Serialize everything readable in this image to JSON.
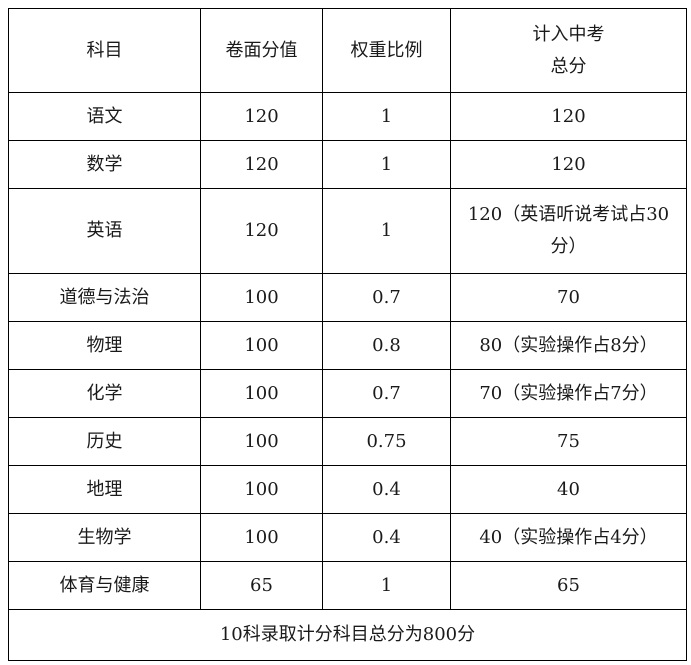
{
  "header": [
    "科目",
    "卷面分值",
    "权重比例",
    "计入中考\n总分"
  ],
  "header_line1": "计入中考",
  "header_line2": "总分",
  "rows": [
    [
      "语文",
      "120",
      "1",
      "120"
    ],
    [
      "数学",
      "120",
      "1",
      "120"
    ],
    [
      "英语",
      "120",
      "1",
      "120（英语听说考试占30分）"
    ],
    [
      "道德与法治",
      "100",
      "0.7",
      "70"
    ],
    [
      "物理",
      "100",
      "0.8",
      "80（实验操作占8分）"
    ],
    [
      "化学",
      "100",
      "0.7",
      "70（实验操作占7分）"
    ],
    [
      "历史",
      "100",
      "0.75",
      "75"
    ],
    [
      "地理",
      "100",
      "0.4",
      "40"
    ],
    [
      "生物学",
      "100",
      "0.4",
      "40（实验操作占4分）"
    ],
    [
      "体育与健康",
      "65",
      "1",
      "65"
    ]
  ],
  "footer": "10科录取计分科目总分为800分"
}
